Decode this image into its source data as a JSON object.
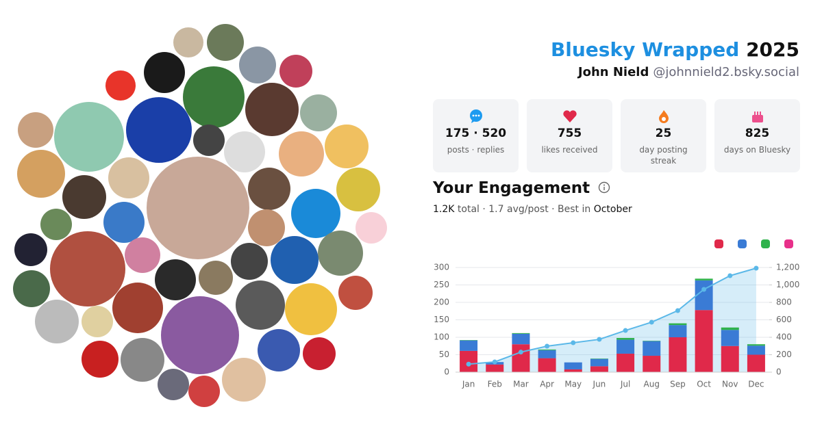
{
  "header": {
    "title": "Bluesky Wrapped",
    "year": "2025",
    "name": "John Nield",
    "handle": "@johnnield2.bsky.social"
  },
  "stats": [
    {
      "value": "175 · 520",
      "label": "posts · replies"
    },
    {
      "value": 755,
      "label": "likes received"
    },
    {
      "value": 25,
      "label": "day posting streak"
    },
    {
      "value": 825,
      "label": "days on Bluesky"
    }
  ],
  "engagement": {
    "title": "Your Engagement",
    "total": "1.2K",
    "middle": "total · 1.7 avg/post · Best in",
    "best": "October"
  },
  "chart_data": {
    "type": "bar",
    "categories": [
      "Jan",
      "Feb",
      "Mar",
      "Apr",
      "May",
      "Jun",
      "Jul",
      "Aug",
      "Sep",
      "Oct",
      "Nov",
      "Dec"
    ],
    "series": [
      {
        "color": "#e0294a",
        "values": [
          61,
          22,
          80,
          40,
          8,
          17,
          53,
          47,
          100,
          178,
          75,
          50
        ]
      },
      {
        "color": "#3a7bd5",
        "values": [
          30,
          7,
          30,
          23,
          20,
          21,
          40,
          42,
          35,
          85,
          46,
          26
        ]
      },
      {
        "color": "#2fb24c",
        "values": [
          1,
          0,
          2,
          2,
          0,
          1,
          5,
          1,
          5,
          5,
          7,
          4
        ]
      },
      {
        "color": "#e8308a",
        "values": [
          0,
          0,
          0,
          0,
          0,
          0,
          0,
          0,
          0,
          0,
          0,
          0
        ]
      },
      {
        "type": "line",
        "axis": "y2",
        "color": "#5bb8e8",
        "values": [
          92,
          118,
          230,
          298,
          337,
          376,
          478,
          573,
          706,
          949,
          1106,
          1192
        ]
      }
    ],
    "ylim": [
      0,
      300
    ],
    "yticks": [
      0,
      50,
      100,
      150,
      200,
      250,
      300
    ],
    "y2lim": [
      0,
      1200
    ],
    "y2ticks": [
      0,
      200,
      400,
      600,
      800,
      {
        "value": 1000,
        "label": "1,000"
      },
      {
        "value": 1200,
        "label": "1,200"
      }
    ],
    "grid": true
  }
}
